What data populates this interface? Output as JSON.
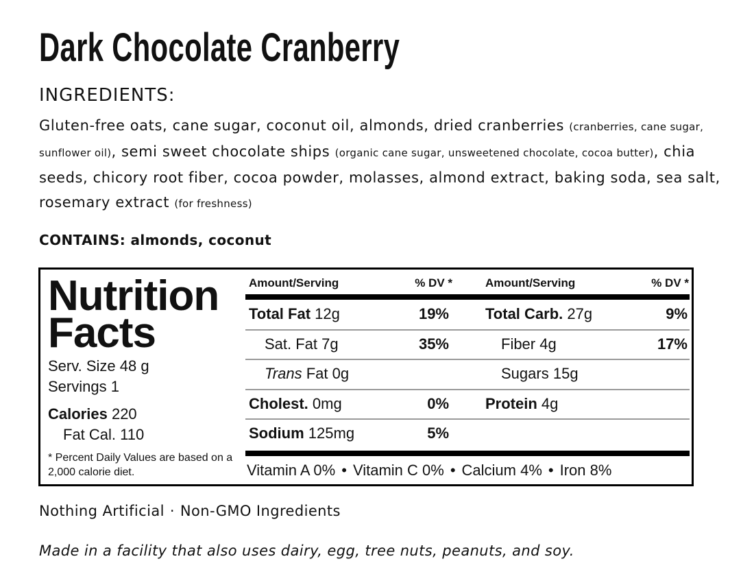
{
  "title": "Dark Chocolate Cranberry",
  "ingredients": {
    "heading": "INGREDIENTS:",
    "segments": [
      {
        "main": "Gluten-free oats, cane sugar, coconut oil, almonds, dried cranberries",
        "note": "(cranberries, cane sugar, sunflower oil)"
      },
      {
        "main": ", semi sweet chocolate ships",
        "note": "(organic cane sugar, unsweetened chocolate, cocoa butter)"
      },
      {
        "main": ", chia seeds, chicory root fiber, cocoa powder, molasses, almond extract, baking soda, sea salt, rosemary extract",
        "note": "(for freshness)"
      }
    ]
  },
  "contains": "CONTAINS: almonds, coconut",
  "nutrition": {
    "title": "Nutrition Facts",
    "serving_size": "Serv. Size 48 g",
    "servings": "Servings 1",
    "calories": {
      "label": "Calories",
      "value": "220"
    },
    "fat_calories": "Fat Cal. 110",
    "footnote": "* Percent Daily Values are based on a 2,000 calorie diet.",
    "headers": [
      "Amount/Serving",
      "% DV *",
      "Amount/Serving",
      "% DV *"
    ],
    "left_rows": [
      {
        "name": "Total Fat",
        "amount": "12g",
        "dv": "19%",
        "style": "bold"
      },
      {
        "name": "Sat. Fat",
        "amount": "7g",
        "dv": "35%",
        "style": "indent"
      },
      {
        "name": "Trans",
        "amount": "Fat 0g",
        "style": "italic"
      },
      {
        "name": "Cholest.",
        "amount": "0mg",
        "dv": "0%",
        "style": "bold"
      },
      {
        "name": "Sodium",
        "amount": "125mg",
        "dv": "5%",
        "style": "bold"
      }
    ],
    "right_rows": [
      {
        "name": "Total Carb.",
        "amount": "27g",
        "dv": "9%",
        "style": "bold"
      },
      {
        "name": "Fiber",
        "amount": "4g",
        "dv": "17%",
        "style": "indent"
      },
      {
        "name": "Sugars",
        "amount": "15g",
        "style": "indent"
      },
      {
        "name": "Protein",
        "amount": "4g",
        "style": "bold"
      }
    ],
    "vitamins": [
      "Vitamin A 0%",
      "Vitamin C 0%",
      "Calcium 4%",
      "Iron 8%"
    ]
  },
  "claims": [
    "Nothing Artificial",
    "Non-GMO Ingredients"
  ],
  "allergen_note": "Made in a facility that also uses dairy, egg, tree nuts, peanuts, and soy."
}
